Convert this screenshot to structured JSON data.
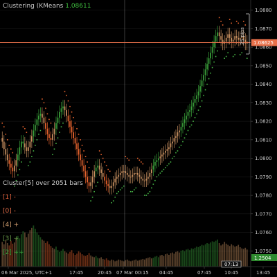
{
  "indicator": {
    "name": "Clustering (KMeans",
    "value": "1.08611"
  },
  "cluster_info": {
    "header": "Cluster[5] over 2051 bars",
    "rows": [
      {
        "label": "[1] -",
        "color": "#e0603c"
      },
      {
        "label": "[0] -",
        "color": "#e8704a"
      },
      {
        "label": "[4] +",
        "color": "#d4a070"
      },
      {
        "label": "[3] +",
        "color": "#6a9a48"
      },
      {
        "label": "[2] ++",
        "color": "#3aa03a"
      }
    ]
  },
  "price_badge": "1.08625",
  "pips_label": "25 pips",
  "volume_badge": "1.2504",
  "time_badge": "07:13",
  "colors": {
    "bg": "#000000",
    "grid": "#1a1a1a",
    "up_strong": "#3aa03a",
    "down_strong": "#e8642e",
    "neutral": "#c89060",
    "price_line": "#e8704a",
    "dot": "#46b446"
  },
  "chart_data": {
    "type": "candlestick",
    "title": "",
    "y_ticks": [
      1.088,
      1.087,
      1.086,
      1.085,
      1.084,
      1.083,
      1.082,
      1.081,
      1.08,
      1.079,
      1.078,
      1.077,
      1.076,
      1.075
    ],
    "y_tick_labels": [
      "1.0880",
      "1.0870",
      "1.0860",
      "1.0850",
      "1.0840",
      "1.0830",
      "1.0820",
      "1.0810",
      "1.0800",
      "1.0790",
      "1.0780",
      "1.0770",
      "1.0760",
      "1.0750"
    ],
    "ylim": [
      1.07415,
      1.08855
    ],
    "x_labels": [
      "06 Mar 2025, UTC+1",
      "17:45",
      "20:45",
      "07 Mar 00:15",
      "04:45",
      "07:45",
      "10:45",
      "13:45"
    ],
    "current_price": 1.08625,
    "close": [
      1.0809,
      1.0805,
      1.0802,
      1.0799,
      1.0797,
      1.0795,
      1.0793,
      1.0796,
      1.0799,
      1.0802,
      1.0806,
      1.0809,
      1.0808,
      1.0806,
      1.0804,
      1.0806,
      1.0809,
      1.0812,
      1.0815,
      1.0818,
      1.0821,
      1.0823,
      1.0824,
      1.0822,
      1.0819,
      1.0816,
      1.0813,
      1.0811,
      1.081,
      1.0813,
      1.0816,
      1.0819,
      1.0822,
      1.0825,
      1.0827,
      1.0828,
      1.0826,
      1.0823,
      1.082,
      1.0817,
      1.0814,
      1.0811,
      1.0808,
      1.0805,
      1.0802,
      1.0799,
      1.0796,
      1.0793,
      1.079,
      1.0787,
      1.0785,
      1.0787,
      1.079,
      1.0793,
      1.0795,
      1.0796,
      1.0794,
      1.0792,
      1.079,
      1.0788,
      1.0786,
      1.0785,
      1.0784,
      1.0785,
      1.0787,
      1.0789,
      1.079,
      1.0791,
      1.0792,
      1.0793,
      1.0793,
      1.0792,
      1.0791,
      1.079,
      1.079,
      1.0791,
      1.0792,
      1.0792,
      1.0791,
      1.079,
      1.0789,
      1.0788,
      1.0788,
      1.0789,
      1.079,
      1.0792,
      1.0794,
      1.0796,
      1.0798,
      1.0799,
      1.08,
      1.0801,
      1.0802,
      1.0803,
      1.0804,
      1.0805,
      1.0806,
      1.0808,
      1.0809,
      1.0811,
      1.0812,
      1.0814,
      1.0815,
      1.0817,
      1.0819,
      1.0821,
      1.0823,
      1.0825,
      1.0826,
      1.0828,
      1.083,
      1.0832,
      1.0834,
      1.0836,
      1.0839,
      1.0842,
      1.0845,
      1.0848,
      1.0851,
      1.0854,
      1.0857,
      1.086,
      1.0863,
      1.0866,
      1.0868,
      1.0866,
      1.0864,
      1.0862,
      1.0863,
      1.0865,
      1.0867,
      1.0865,
      1.0863,
      1.0864,
      1.0866,
      1.0865,
      1.0864,
      1.0865,
      1.0866,
      1.0864,
      1.0862,
      1.0863
    ],
    "volume": [
      0.42,
      0.38,
      0.45,
      0.4,
      0.36,
      0.44,
      0.39,
      0.41,
      0.47,
      0.52,
      0.48,
      0.55,
      0.6,
      0.58,
      0.5,
      0.56,
      0.62,
      0.66,
      0.7,
      0.64,
      0.58,
      0.54,
      0.5,
      0.46,
      0.44,
      0.4,
      0.43,
      0.38,
      0.35,
      0.32,
      0.3,
      0.34,
      0.28,
      0.25,
      0.27,
      0.3,
      0.26,
      0.24,
      0.22,
      0.25,
      0.28,
      0.23,
      0.2,
      0.22,
      0.26,
      0.24,
      0.21,
      0.19,
      0.18,
      0.2,
      0.23,
      0.19,
      0.17,
      0.16,
      0.18,
      0.15,
      0.14,
      0.16,
      0.13,
      0.12,
      0.14,
      0.11,
      0.1,
      0.12,
      0.11,
      0.09,
      0.1,
      0.12,
      0.11,
      0.1,
      0.09,
      0.11,
      0.12,
      0.1,
      0.09,
      0.1,
      0.11,
      0.12,
      0.1,
      0.11,
      0.12,
      0.13,
      0.12,
      0.14,
      0.15,
      0.16,
      0.14,
      0.15,
      0.17,
      0.18,
      0.16,
      0.19,
      0.2,
      0.18,
      0.21,
      0.22,
      0.2,
      0.23,
      0.24,
      0.22,
      0.25,
      0.26,
      0.24,
      0.27,
      0.28,
      0.26,
      0.29,
      0.3,
      0.28,
      0.31,
      0.3,
      0.32,
      0.34,
      0.33,
      0.35,
      0.37,
      0.36,
      0.38,
      0.4,
      0.39,
      0.41,
      0.43,
      0.42,
      0.44,
      0.46,
      0.4,
      0.36,
      0.38,
      0.42,
      0.39,
      0.37,
      0.35,
      0.38,
      0.36,
      0.34,
      0.35,
      0.37,
      0.33,
      0.31,
      0.3,
      0.32,
      0.29
    ]
  }
}
